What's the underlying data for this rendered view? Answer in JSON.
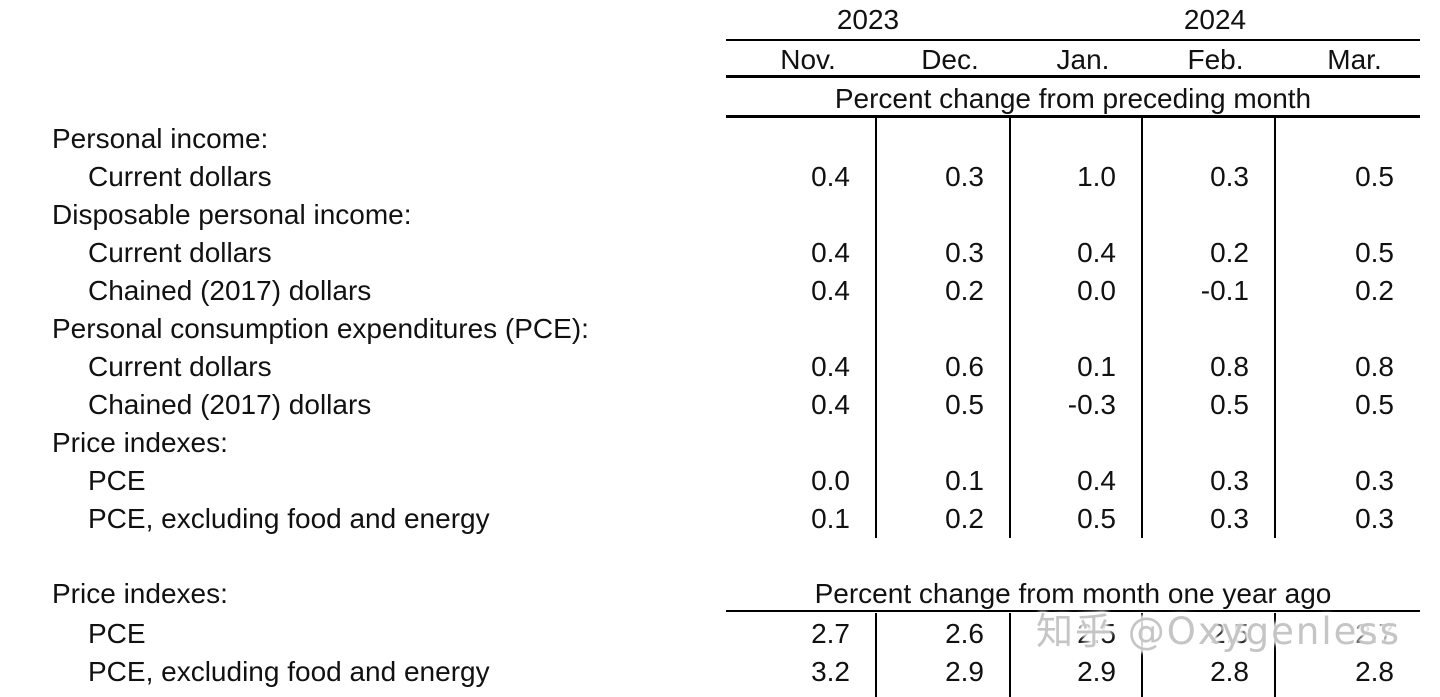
{
  "watermark": {
    "text": "知乎 @Oxygenless",
    "color": "#c5c5c5"
  },
  "table": {
    "years": [
      {
        "label": "2023"
      },
      {
        "label": "2024"
      }
    ],
    "months": [
      "Nov.",
      "Dec.",
      "Jan.",
      "Feb.",
      "Mar."
    ],
    "section1": {
      "header": "Percent change from preceding month",
      "rows": [
        {
          "label": "Personal income:",
          "indent": 0,
          "values": []
        },
        {
          "label": "Current dollars",
          "indent": 1,
          "values": [
            "0.4",
            "0.3",
            "1.0",
            "0.3",
            "0.5"
          ]
        },
        {
          "label": "Disposable personal income:",
          "indent": 0,
          "values": []
        },
        {
          "label": "Current dollars",
          "indent": 1,
          "values": [
            "0.4",
            "0.3",
            "0.4",
            "0.2",
            "0.5"
          ]
        },
        {
          "label": "Chained (2017) dollars",
          "indent": 1,
          "values": [
            "0.4",
            "0.2",
            "0.0",
            "-0.1",
            "0.2"
          ]
        },
        {
          "label": "Personal consumption expenditures (PCE):",
          "indent": 0,
          "values": []
        },
        {
          "label": "Current dollars",
          "indent": 1,
          "values": [
            "0.4",
            "0.6",
            "0.1",
            "0.8",
            "0.8"
          ]
        },
        {
          "label": "Chained (2017) dollars",
          "indent": 1,
          "values": [
            "0.4",
            "0.5",
            "-0.3",
            "0.5",
            "0.5"
          ]
        },
        {
          "label": "Price indexes:",
          "indent": 0,
          "values": []
        },
        {
          "label": "PCE",
          "indent": 1,
          "values": [
            "0.0",
            "0.1",
            "0.4",
            "0.3",
            "0.3"
          ]
        },
        {
          "label": "PCE, excluding food and energy",
          "indent": 1,
          "values": [
            "0.1",
            "0.2",
            "0.5",
            "0.3",
            "0.3"
          ]
        }
      ]
    },
    "section2": {
      "label": "Price indexes:",
      "header": "Percent change from month one year ago",
      "rows": [
        {
          "label": "PCE",
          "indent": 1,
          "values": [
            "2.7",
            "2.6",
            "2.5",
            "2.5",
            "2.7"
          ]
        },
        {
          "label": "PCE, excluding food and energy",
          "indent": 1,
          "values": [
            "3.2",
            "2.9",
            "2.9",
            "2.8",
            "2.8"
          ]
        }
      ]
    }
  }
}
